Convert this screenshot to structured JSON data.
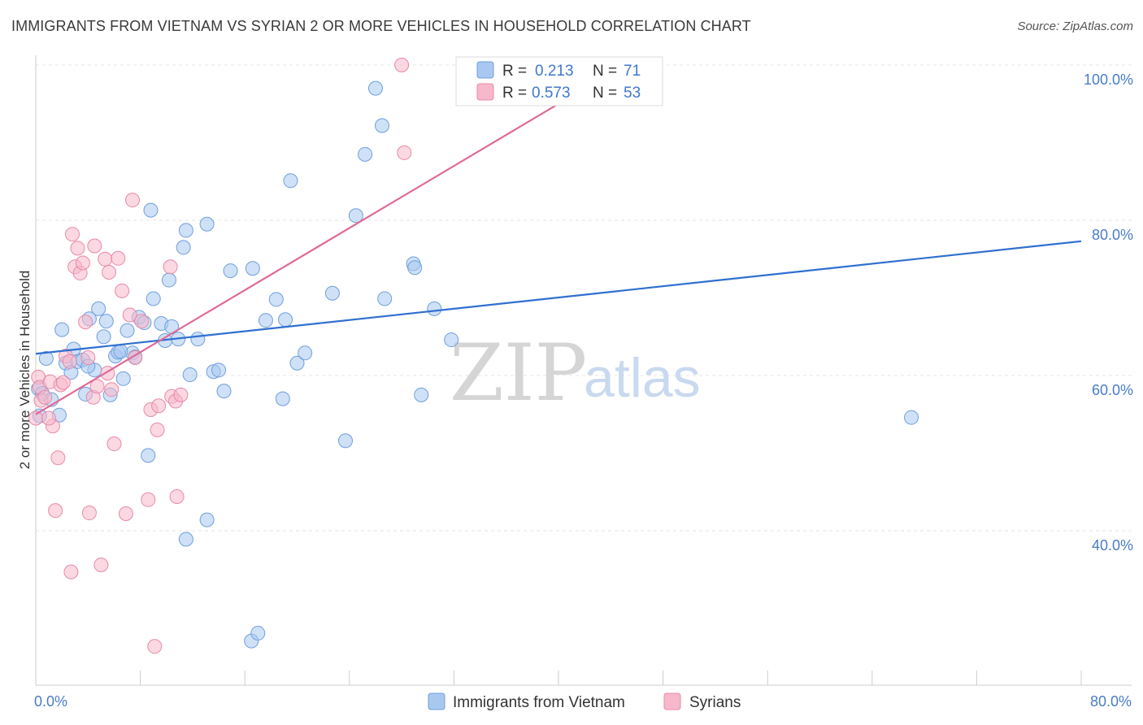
{
  "header": {
    "title": "IMMIGRANTS FROM VIETNAM VS SYRIAN 2 OR MORE VEHICLES IN HOUSEHOLD CORRELATION CHART",
    "source": "Source: ZipAtlas.com"
  },
  "watermark": {
    "zip": "ZIP",
    "atlas": "atlas"
  },
  "legend": {
    "rows": [
      {
        "r_label": "R =",
        "r_value": "0.213",
        "n_label": "N =",
        "n_value": "71",
        "color": "#a8c8f0"
      },
      {
        "r_label": "R =",
        "r_value": "0.573",
        "n_label": "N =",
        "n_value": "53",
        "color": "#f7b8cb"
      }
    ]
  },
  "chart_data": {
    "type": "scatter",
    "title": "IMMIGRANTS FROM VIETNAM VS SYRIAN 2 OR MORE VEHICLES IN HOUSEHOLD CORRELATION CHART",
    "xlabel": "",
    "ylabel": "2 or more Vehicles in Household",
    "xlim": [
      0,
      80
    ],
    "ylim": [
      20,
      100
    ],
    "x_tick_labels": [
      "0.0%",
      "80.0%"
    ],
    "y_ticks": [
      40,
      60,
      80,
      100
    ],
    "y_tick_labels": [
      "40.0%",
      "60.0%",
      "80.0%",
      "100.0%"
    ],
    "grid": true,
    "legend_position": "top-center",
    "series": [
      {
        "name": "Immigrants from Vietnam",
        "color": "#a8c8f0",
        "stroke": "#6f9fdc",
        "trend_color": "#2f6fd0",
        "trend": [
          [
            0,
            62.8
          ],
          [
            80,
            77.3
          ]
        ],
        "points": [
          [
            0.2,
            58.3
          ],
          [
            0.3,
            54.8
          ],
          [
            0.5,
            57.7
          ],
          [
            0.8,
            62.2
          ],
          [
            1.2,
            56.9
          ],
          [
            1.8,
            54.9
          ],
          [
            2.0,
            65.9
          ],
          [
            2.3,
            61.6
          ],
          [
            2.7,
            60.4
          ],
          [
            2.9,
            63.4
          ],
          [
            3.2,
            61.8
          ],
          [
            3.6,
            62.0
          ],
          [
            3.8,
            57.6
          ],
          [
            4.1,
            67.3
          ],
          [
            4.5,
            60.7
          ],
          [
            4.8,
            68.6
          ],
          [
            5.2,
            65.0
          ],
          [
            5.4,
            67.0
          ],
          [
            5.7,
            57.5
          ],
          [
            6.1,
            62.5
          ],
          [
            6.3,
            63.0
          ],
          [
            6.7,
            59.6
          ],
          [
            7.0,
            65.8
          ],
          [
            7.4,
            62.9
          ],
          [
            7.6,
            62.4
          ],
          [
            7.9,
            67.5
          ],
          [
            8.3,
            66.8
          ],
          [
            8.6,
            49.7
          ],
          [
            8.8,
            81.3
          ],
          [
            9.0,
            69.9
          ],
          [
            9.6,
            66.7
          ],
          [
            9.9,
            64.5
          ],
          [
            10.2,
            72.3
          ],
          [
            10.4,
            66.3
          ],
          [
            10.9,
            64.7
          ],
          [
            11.3,
            76.5
          ],
          [
            11.5,
            78.7
          ],
          [
            11.8,
            60.1
          ],
          [
            12.4,
            64.7
          ],
          [
            13.1,
            79.5
          ],
          [
            13.6,
            60.5
          ],
          [
            14.0,
            60.7
          ],
          [
            14.4,
            58.0
          ],
          [
            14.9,
            73.5
          ],
          [
            16.6,
            73.8
          ],
          [
            17.6,
            67.1
          ],
          [
            18.4,
            69.8
          ],
          [
            18.9,
            57.0
          ],
          [
            19.1,
            67.2
          ],
          [
            19.5,
            85.1
          ],
          [
            20.0,
            61.6
          ],
          [
            20.6,
            62.9
          ],
          [
            22.7,
            70.6
          ],
          [
            23.7,
            51.6
          ],
          [
            24.5,
            80.6
          ],
          [
            25.2,
            88.5
          ],
          [
            26.0,
            97.0
          ],
          [
            26.5,
            92.2
          ],
          [
            26.7,
            69.9
          ],
          [
            28.9,
            74.4
          ],
          [
            29.0,
            73.9
          ],
          [
            29.5,
            57.5
          ],
          [
            30.5,
            68.6
          ],
          [
            31.8,
            64.6
          ],
          [
            67.0,
            54.6
          ],
          [
            11.5,
            38.9
          ],
          [
            13.1,
            41.4
          ],
          [
            16.5,
            25.8
          ],
          [
            17.0,
            26.8
          ],
          [
            4.0,
            61.2
          ],
          [
            6.5,
            63.1
          ]
        ]
      },
      {
        "name": "Syrians",
        "color": "#f7b8cb",
        "stroke": "#e88aa8",
        "trend_color": "#e06a97",
        "trend": [
          [
            0,
            55.0
          ],
          [
            45,
            100.0
          ]
        ],
        "points": [
          [
            0.0,
            54.5
          ],
          [
            0.2,
            59.8
          ],
          [
            0.3,
            58.5
          ],
          [
            0.4,
            56.8
          ],
          [
            0.7,
            57.2
          ],
          [
            1.1,
            59.2
          ],
          [
            1.3,
            53.5
          ],
          [
            1.5,
            42.6
          ],
          [
            1.7,
            49.4
          ],
          [
            1.9,
            58.8
          ],
          [
            2.1,
            59.1
          ],
          [
            2.3,
            62.5
          ],
          [
            2.6,
            61.8
          ],
          [
            2.7,
            34.7
          ],
          [
            2.8,
            78.2
          ],
          [
            3.0,
            74.0
          ],
          [
            3.2,
            76.4
          ],
          [
            3.4,
            73.2
          ],
          [
            3.6,
            74.5
          ],
          [
            3.8,
            66.9
          ],
          [
            4.0,
            62.3
          ],
          [
            4.1,
            42.3
          ],
          [
            4.4,
            57.2
          ],
          [
            4.5,
            76.7
          ],
          [
            4.7,
            58.6
          ],
          [
            5.0,
            35.6
          ],
          [
            5.3,
            75.0
          ],
          [
            5.5,
            60.3
          ],
          [
            5.6,
            73.3
          ],
          [
            6.0,
            51.2
          ],
          [
            6.3,
            75.1
          ],
          [
            6.6,
            70.9
          ],
          [
            6.9,
            42.2
          ],
          [
            7.2,
            67.8
          ],
          [
            7.4,
            82.6
          ],
          [
            7.6,
            62.3
          ],
          [
            8.1,
            67.0
          ],
          [
            8.6,
            44.0
          ],
          [
            8.8,
            55.6
          ],
          [
            9.1,
            25.1
          ],
          [
            9.3,
            53.0
          ],
          [
            9.4,
            56.1
          ],
          [
            10.3,
            74.0
          ],
          [
            10.4,
            57.3
          ],
          [
            10.7,
            56.7
          ],
          [
            10.8,
            44.4
          ],
          [
            11.1,
            57.5
          ],
          [
            28.0,
            100.0
          ],
          [
            28.2,
            88.7
          ],
          [
            40.0,
            100.0
          ],
          [
            46.0,
            100.0
          ],
          [
            1.0,
            54.5
          ],
          [
            5.8,
            58.2
          ]
        ]
      }
    ]
  },
  "x_axis": {
    "min_label": "0.0%",
    "max_label": "80.0%"
  },
  "bottom_legend": {
    "items": [
      {
        "label": "Immigrants from Vietnam",
        "color": "#a8c8f0"
      },
      {
        "label": "Syrians",
        "color": "#f7b8cb"
      }
    ]
  }
}
